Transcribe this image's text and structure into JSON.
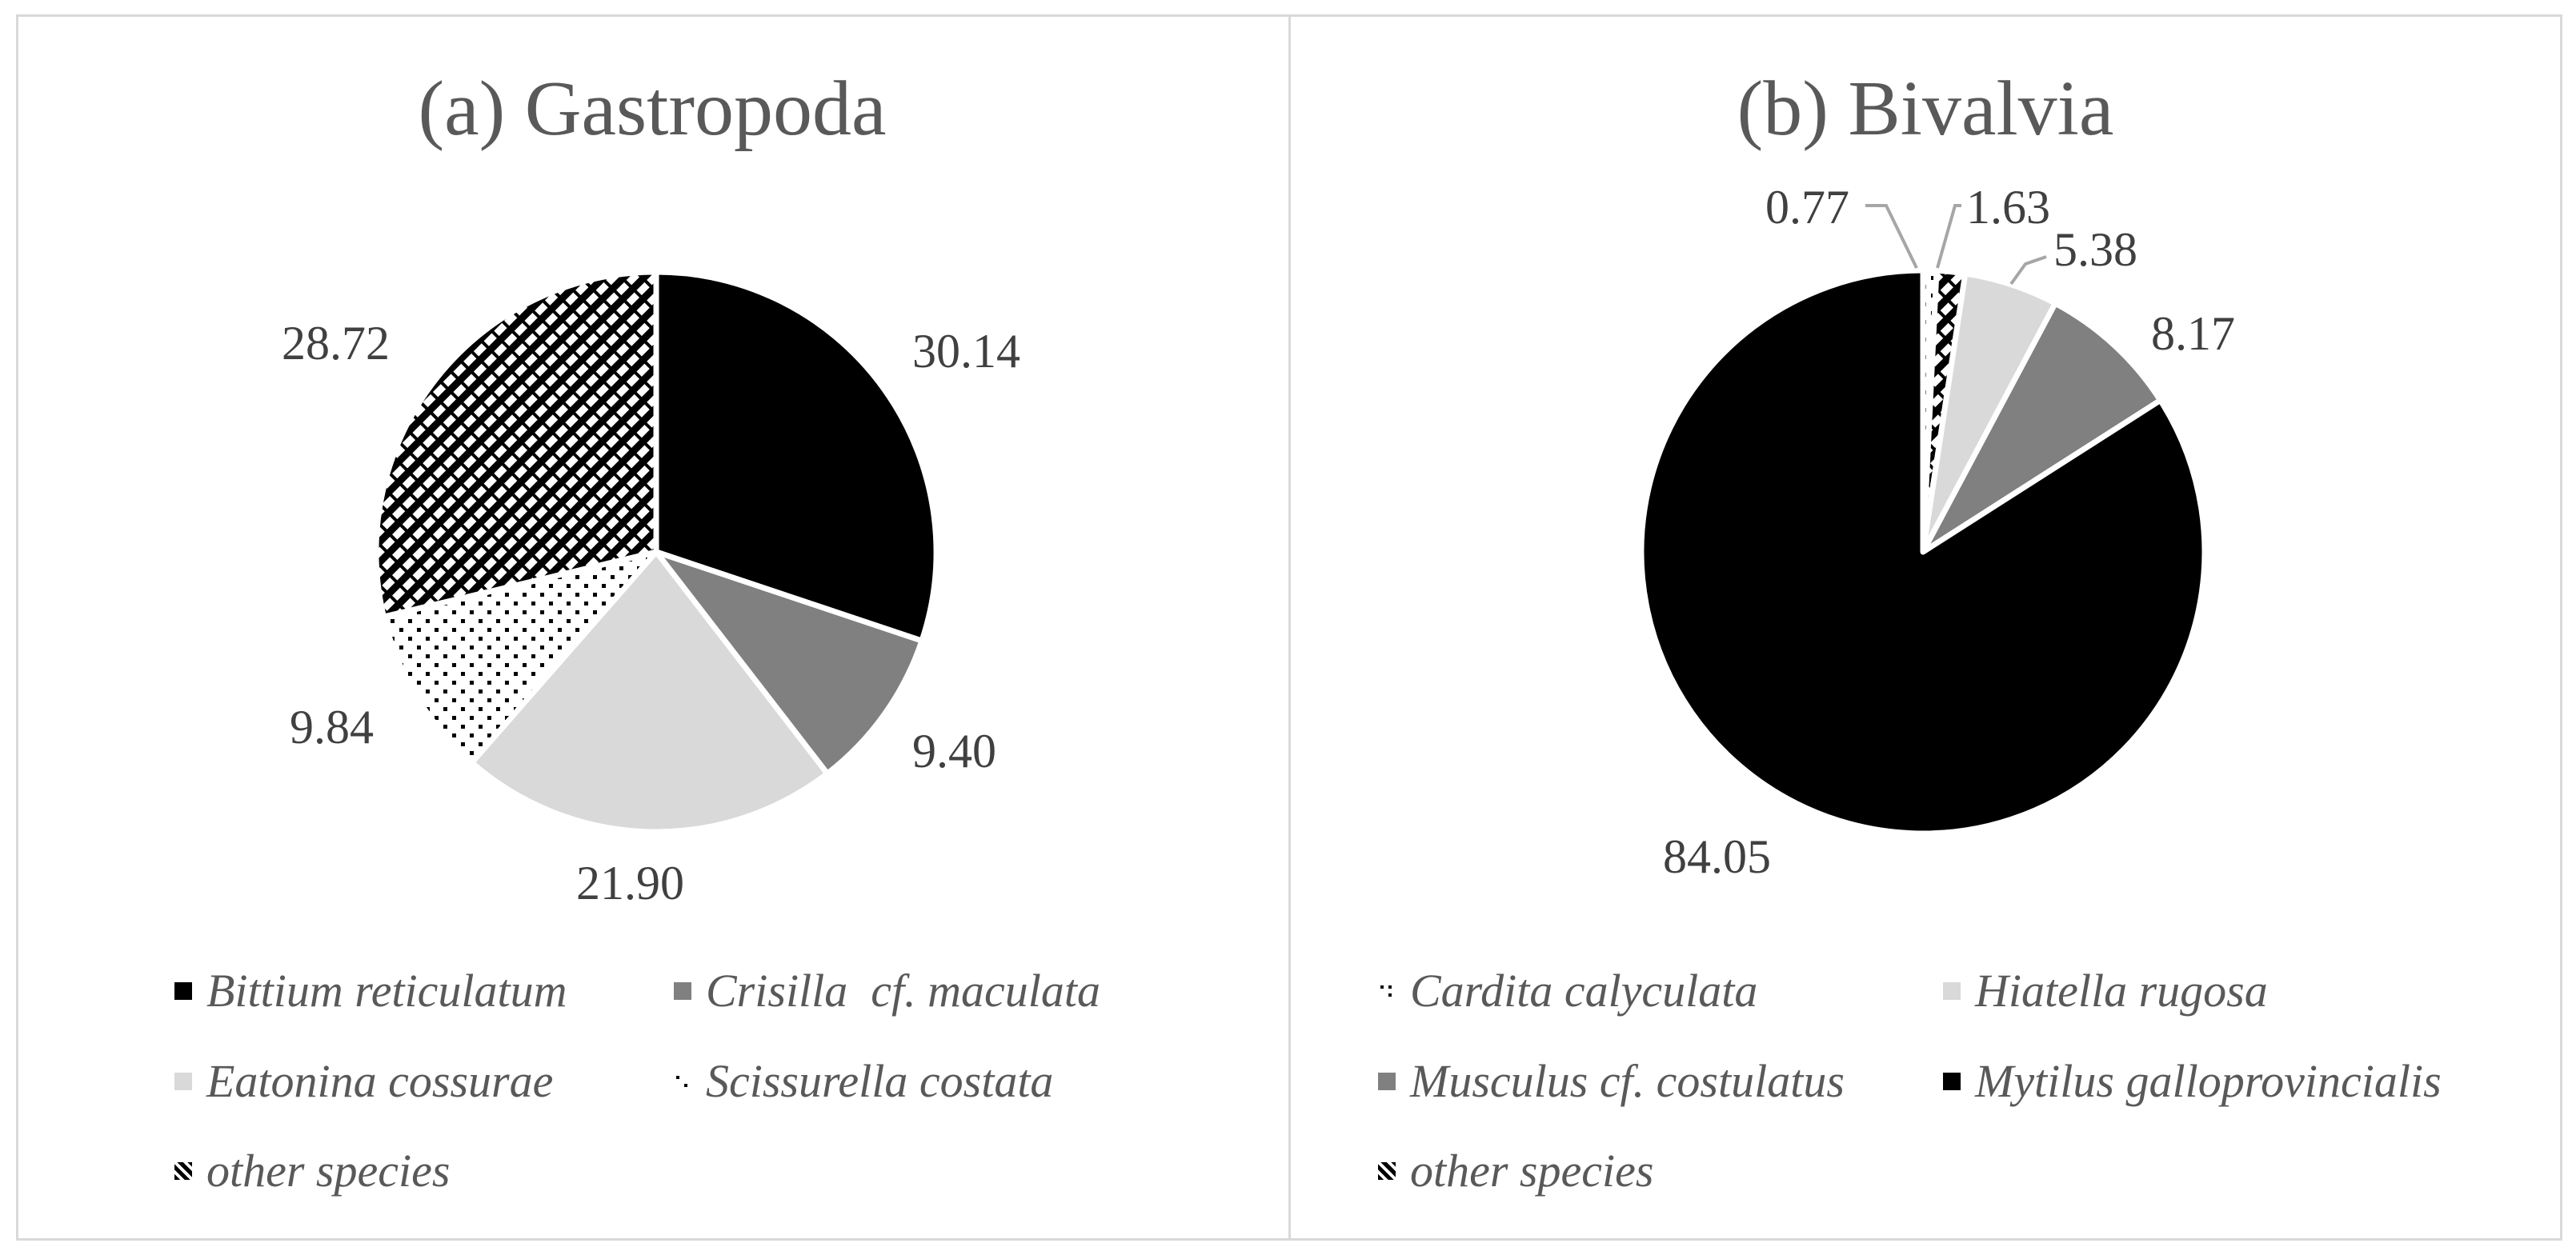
{
  "chart_data": [
    {
      "type": "pie",
      "title": "(a) Gastropoda",
      "slices": [
        {
          "label": "Bittium reticulatum",
          "value": 30.14,
          "data_label": "30.14",
          "fill": "solid-black"
        },
        {
          "label": "Crisilla  cf. maculata",
          "value": 9.4,
          "data_label": "9.40",
          "fill": "solid-darkgray"
        },
        {
          "label": "Eatonina cossurae",
          "value": 21.9,
          "data_label": "21.90",
          "fill": "solid-lightgray"
        },
        {
          "label": "Scissurella costata",
          "value": 9.84,
          "data_label": "9.84",
          "fill": "dots"
        },
        {
          "label": "other species",
          "value": 28.72,
          "data_label": "28.72",
          "fill": "diagonal-checker"
        }
      ],
      "legend_position": "bottom"
    },
    {
      "type": "pie",
      "title": "(b) Bivalvia",
      "slices": [
        {
          "label": "Cardita calyculata",
          "value": 0.77,
          "data_label": "0.77",
          "fill": "dots"
        },
        {
          "label": "Hiatella rugosa",
          "value": 5.38,
          "data_label": "5.38",
          "fill": "solid-lightgray"
        },
        {
          "label": "Musculus cf. costulatus",
          "value": 8.17,
          "data_label": "8.17",
          "fill": "solid-darkgray"
        },
        {
          "label": "Mytilus galloprovincialis",
          "value": 84.05,
          "data_label": "84.05",
          "fill": "solid-black"
        },
        {
          "label": "other species",
          "value": 1.63,
          "data_label": "1.63",
          "fill": "diagonal-checker"
        }
      ],
      "slice_draw_order": [
        0,
        4,
        1,
        2,
        3
      ],
      "legend_position": "bottom"
    }
  ],
  "colors": {
    "black": "#000000",
    "dark_gray": "#808080",
    "light_gray": "#d9d9d9",
    "text": "#595959",
    "border": "#d9d9d9"
  }
}
